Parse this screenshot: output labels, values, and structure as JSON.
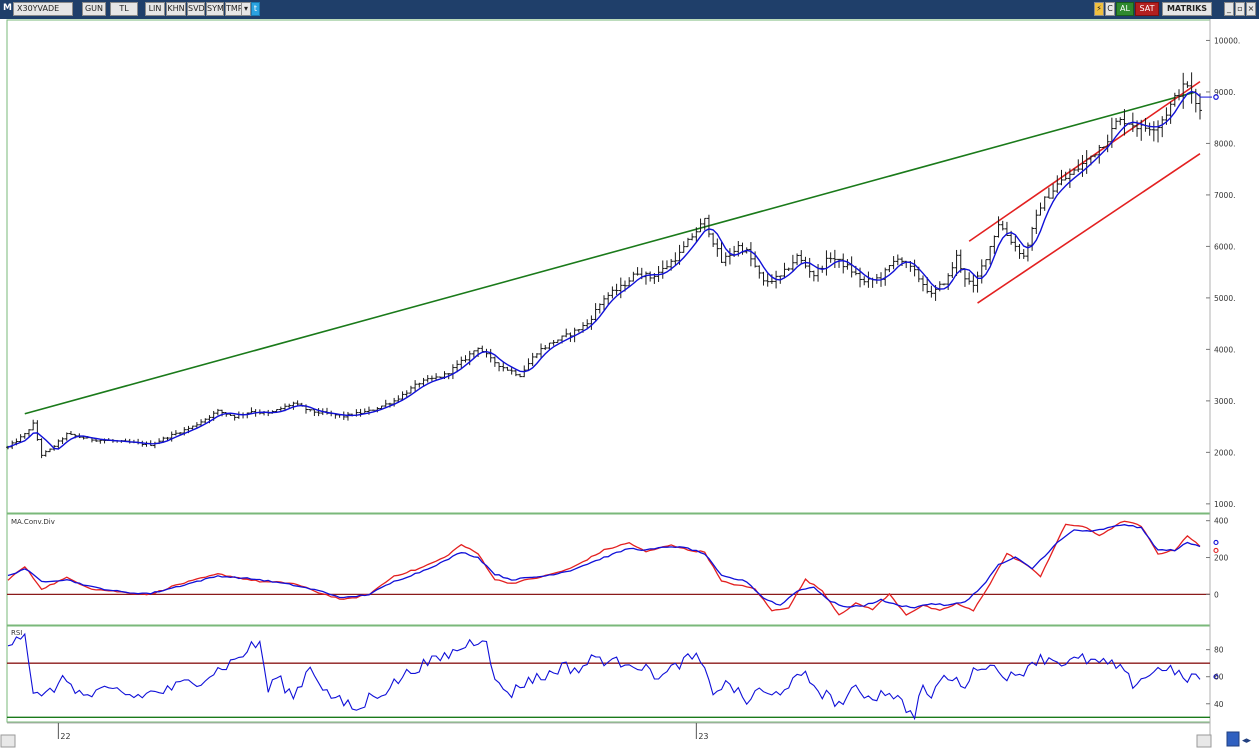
{
  "toolbar": {
    "menu": "M",
    "symbol": "X30YVADE",
    "buttons": [
      "GUN",
      "TL",
      "LIN",
      "KHN",
      "SVD",
      "SYM",
      "TMP"
    ],
    "al_label": "AL",
    "sat_label": "SAT",
    "matriks_label": "MATRIKS",
    "colors": {
      "bar": "#1f3f6a",
      "al": "#2f8a2f",
      "sat": "#b32020"
    }
  },
  "chart_data": [
    {
      "type": "ohlc",
      "name": "price",
      "y_ticks": [
        "10000.",
        "9000.",
        "8000.",
        "7000.",
        "6000.",
        "5000.",
        "4000.",
        "3000.",
        "2000.",
        "1000."
      ],
      "ylim": [
        900,
        10300
      ],
      "x_tick_labels": [
        {
          "label": "22",
          "week": 12
        },
        {
          "label": "23",
          "week": 164
        }
      ],
      "close_anchors": [
        [
          0,
          2100
        ],
        [
          4,
          2350
        ],
        [
          6,
          2550
        ],
        [
          8,
          1950
        ],
        [
          10,
          2050
        ],
        [
          14,
          2350
        ],
        [
          20,
          2250
        ],
        [
          28,
          2200
        ],
        [
          34,
          2150
        ],
        [
          38,
          2300
        ],
        [
          44,
          2500
        ],
        [
          50,
          2800
        ],
        [
          54,
          2700
        ],
        [
          58,
          2800
        ],
        [
          62,
          2750
        ],
        [
          68,
          2950
        ],
        [
          72,
          2800
        ],
        [
          76,
          2750
        ],
        [
          80,
          2700
        ],
        [
          86,
          2800
        ],
        [
          92,
          3000
        ],
        [
          98,
          3350
        ],
        [
          104,
          3500
        ],
        [
          108,
          3750
        ],
        [
          112,
          4050
        ],
        [
          115,
          3800
        ],
        [
          118,
          3650
        ],
        [
          122,
          3500
        ],
        [
          126,
          3950
        ],
        [
          130,
          4150
        ],
        [
          134,
          4300
        ],
        [
          138,
          4500
        ],
        [
          142,
          5000
        ],
        [
          146,
          5200
        ],
        [
          150,
          5500
        ],
        [
          153,
          5400
        ],
        [
          156,
          5550
        ],
        [
          160,
          5850
        ],
        [
          163,
          6200
        ],
        [
          166,
          6500
        ],
        [
          170,
          5700
        ],
        [
          174,
          6000
        ],
        [
          176,
          5900
        ],
        [
          180,
          5300
        ],
        [
          184,
          5400
        ],
        [
          188,
          5800
        ],
        [
          192,
          5450
        ],
        [
          196,
          5800
        ],
        [
          200,
          5600
        ],
        [
          204,
          5300
        ],
        [
          208,
          5400
        ],
        [
          212,
          5800
        ],
        [
          216,
          5500
        ],
        [
          220,
          5050
        ],
        [
          224,
          5400
        ],
        [
          226,
          5800
        ],
        [
          228,
          5400
        ],
        [
          230,
          5200
        ],
        [
          234,
          6000
        ],
        [
          236,
          6450
        ],
        [
          240,
          6000
        ],
        [
          242,
          5800
        ],
        [
          246,
          6800
        ],
        [
          250,
          7200
        ],
        [
          254,
          7450
        ],
        [
          258,
          7750
        ],
        [
          262,
          8100
        ],
        [
          264,
          8400
        ],
        [
          266,
          8450
        ],
        [
          270,
          8300
        ],
        [
          274,
          8350
        ],
        [
          276,
          8600
        ],
        [
          279,
          9000
        ],
        [
          281,
          9150
        ],
        [
          283,
          8750
        ],
        [
          284,
          8650
        ]
      ],
      "annotations": [
        {
          "type": "trendline",
          "color": "#1a7a1a",
          "from": {
            "week": 4,
            "value": 2750
          },
          "to": {
            "week": 283,
            "value": 9000
          }
        },
        {
          "type": "trendline",
          "color": "#e32020",
          "from": {
            "week": 229,
            "value": 6100
          },
          "to": {
            "week": 284,
            "value": 9200
          }
        },
        {
          "type": "trendline",
          "color": "#e32020",
          "from": {
            "week": 231,
            "value": 4900
          },
          "to": {
            "week": 284,
            "value": 7800
          }
        }
      ],
      "ma_color": "#1010d8",
      "last_value_marker": 8900
    },
    {
      "type": "line",
      "title": "MA.Conv.Div",
      "y_ticks": [
        "400",
        "200",
        "0"
      ],
      "ylim": [
        -150,
        420
      ],
      "series": [
        {
          "color": "#e32020",
          "anchors": [
            [
              0,
              80
            ],
            [
              4,
              150
            ],
            [
              8,
              30
            ],
            [
              14,
              90
            ],
            [
              20,
              30
            ],
            [
              28,
              10
            ],
            [
              34,
              0
            ],
            [
              40,
              50
            ],
            [
              50,
              110
            ],
            [
              60,
              70
            ],
            [
              68,
              60
            ],
            [
              74,
              10
            ],
            [
              80,
              -30
            ],
            [
              86,
              0
            ],
            [
              92,
              100
            ],
            [
              98,
              140
            ],
            [
              104,
              200
            ],
            [
              108,
              270
            ],
            [
              112,
              220
            ],
            [
              116,
              80
            ],
            [
              120,
              60
            ],
            [
              128,
              100
            ],
            [
              134,
              140
            ],
            [
              142,
              240
            ],
            [
              148,
              280
            ],
            [
              152,
              230
            ],
            [
              158,
              270
            ],
            [
              162,
              240
            ],
            [
              166,
              230
            ],
            [
              170,
              70
            ],
            [
              176,
              40
            ],
            [
              178,
              30
            ],
            [
              182,
              -90
            ],
            [
              186,
              -70
            ],
            [
              190,
              80
            ],
            [
              194,
              20
            ],
            [
              198,
              -110
            ],
            [
              202,
              -50
            ],
            [
              206,
              -80
            ],
            [
              210,
              0
            ],
            [
              214,
              -110
            ],
            [
              218,
              -60
            ],
            [
              222,
              -90
            ],
            [
              226,
              -50
            ],
            [
              230,
              -90
            ],
            [
              234,
              60
            ],
            [
              238,
              220
            ],
            [
              242,
              170
            ],
            [
              246,
              100
            ],
            [
              252,
              380
            ],
            [
              256,
              370
            ],
            [
              260,
              320
            ],
            [
              266,
              400
            ],
            [
              270,
              370
            ],
            [
              274,
              220
            ],
            [
              278,
              240
            ],
            [
              281,
              320
            ],
            [
              284,
              260
            ]
          ]
        },
        {
          "color": "#1010d8",
          "anchors": [
            [
              0,
              100
            ],
            [
              4,
              140
            ],
            [
              8,
              70
            ],
            [
              14,
              80
            ],
            [
              20,
              40
            ],
            [
              28,
              10
            ],
            [
              34,
              5
            ],
            [
              40,
              40
            ],
            [
              50,
              100
            ],
            [
              60,
              80
            ],
            [
              68,
              50
            ],
            [
              74,
              20
            ],
            [
              80,
              -20
            ],
            [
              86,
              0
            ],
            [
              92,
              70
            ],
            [
              98,
              120
            ],
            [
              104,
              180
            ],
            [
              108,
              230
            ],
            [
              112,
              200
            ],
            [
              116,
              110
            ],
            [
              120,
              80
            ],
            [
              128,
              100
            ],
            [
              134,
              130
            ],
            [
              142,
              200
            ],
            [
              148,
              250
            ],
            [
              152,
              240
            ],
            [
              158,
              260
            ],
            [
              162,
              250
            ],
            [
              166,
              220
            ],
            [
              170,
              100
            ],
            [
              176,
              70
            ],
            [
              180,
              -20
            ],
            [
              184,
              -60
            ],
            [
              188,
              20
            ],
            [
              192,
              40
            ],
            [
              196,
              -40
            ],
            [
              200,
              -70
            ],
            [
              204,
              -60
            ],
            [
              208,
              -30
            ],
            [
              212,
              -60
            ],
            [
              216,
              -70
            ],
            [
              220,
              -50
            ],
            [
              224,
              -60
            ],
            [
              228,
              -40
            ],
            [
              232,
              40
            ],
            [
              236,
              160
            ],
            [
              240,
              200
            ],
            [
              244,
              140
            ],
            [
              250,
              280
            ],
            [
              254,
              350
            ],
            [
              258,
              340
            ],
            [
              262,
              360
            ],
            [
              266,
              380
            ],
            [
              270,
              360
            ],
            [
              274,
              240
            ],
            [
              278,
              240
            ],
            [
              281,
              280
            ],
            [
              284,
              260
            ]
          ]
        }
      ],
      "zero_line_color": "#8b1a1a"
    },
    {
      "type": "line",
      "title": "RSI",
      "y_ticks": [
        "80",
        "60",
        "40"
      ],
      "ylim": [
        28,
        96
      ],
      "series": [
        {
          "color": "#1010d8",
          "anchors": [
            [
              0,
              85
            ],
            [
              2,
              91
            ],
            [
              4,
              92
            ],
            [
              6,
              50
            ],
            [
              8,
              43
            ],
            [
              12,
              55
            ],
            [
              14,
              58
            ],
            [
              18,
              45
            ],
            [
              22,
              48
            ],
            [
              26,
              50
            ],
            [
              30,
              45
            ],
            [
              34,
              48
            ],
            [
              38,
              50
            ],
            [
              42,
              55
            ],
            [
              46,
              58
            ],
            [
              50,
              65
            ],
            [
              54,
              72
            ],
            [
              58,
              82
            ],
            [
              60,
              85
            ],
            [
              62,
              50
            ],
            [
              64,
              60
            ],
            [
              68,
              45
            ],
            [
              72,
              68
            ],
            [
              76,
              48
            ],
            [
              80,
              40
            ],
            [
              84,
              35
            ],
            [
              86,
              45
            ],
            [
              90,
              50
            ],
            [
              94,
              60
            ],
            [
              98,
              68
            ],
            [
              102,
              72
            ],
            [
              106,
              78
            ],
            [
              110,
              85
            ],
            [
              114,
              90
            ],
            [
              116,
              55
            ],
            [
              120,
              48
            ],
            [
              124,
              58
            ],
            [
              128,
              60
            ],
            [
              132,
              68
            ],
            [
              136,
              65
            ],
            [
              140,
              75
            ],
            [
              144,
              70
            ],
            [
              148,
              72
            ],
            [
              152,
              65
            ],
            [
              156,
              60
            ],
            [
              160,
              70
            ],
            [
              164,
              75
            ],
            [
              168,
              50
            ],
            [
              172,
              55
            ],
            [
              176,
              40
            ],
            [
              178,
              50
            ],
            [
              182,
              45
            ],
            [
              186,
              55
            ],
            [
              190,
              60
            ],
            [
              194,
              48
            ],
            [
              198,
              40
            ],
            [
              202,
              50
            ],
            [
              206,
              45
            ],
            [
              210,
              50
            ],
            [
              214,
              37
            ],
            [
              216,
              30
            ],
            [
              218,
              55
            ],
            [
              220,
              40
            ],
            [
              222,
              60
            ],
            [
              224,
              58
            ],
            [
              228,
              55
            ],
            [
              232,
              70
            ],
            [
              236,
              65
            ],
            [
              240,
              58
            ],
            [
              244,
              72
            ],
            [
              248,
              74
            ],
            [
              252,
              70
            ],
            [
              256,
              73
            ],
            [
              260,
              70
            ],
            [
              264,
              68
            ],
            [
              268,
              55
            ],
            [
              272,
              62
            ],
            [
              276,
              68
            ],
            [
              280,
              58
            ],
            [
              282,
              60
            ]
          ]
        }
      ],
      "reference_lines": [
        {
          "value": 70,
          "color": "#8b1a1a"
        },
        {
          "value": 30,
          "color": "#1a7a1a"
        }
      ]
    }
  ]
}
